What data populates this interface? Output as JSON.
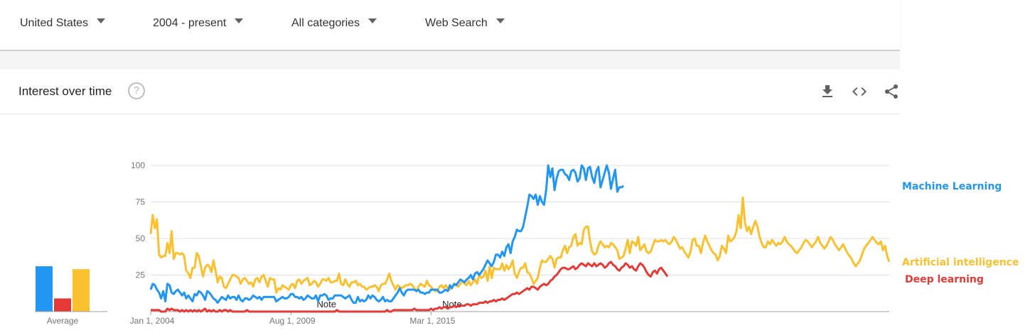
{
  "filters": {
    "region": "United States",
    "time_range": "2004 - present",
    "category": "All categories",
    "search_type": "Web Search"
  },
  "card": {
    "title": "Interest over time",
    "help_icon": "help-circle-icon",
    "actions": [
      "download-icon",
      "embed-code-icon",
      "share-icon"
    ]
  },
  "colors": {
    "machine_learning": "#2196f3",
    "artificial_intelligence": "#fbc02d",
    "deep_learning": "#e53935",
    "grid": "#e0e0e0",
    "axis": "#9e9e9e"
  },
  "chart_data": {
    "type": "line",
    "x_start": "Jan 1, 2004",
    "x_step": "1 month",
    "x_ticks": [
      "Jan 1, 2004",
      "Aug 1, 2009",
      "Mar 1, 2015"
    ],
    "ylim": [
      0,
      100
    ],
    "y_ticks": [
      25,
      50,
      75,
      100
    ],
    "grid": true,
    "legend": "right",
    "notes": [
      {
        "x": "Jan 1, 2011",
        "text": "Note"
      },
      {
        "x": "Jan 1, 2016",
        "text": "Note"
      }
    ],
    "series": [
      {
        "name": "Machine Learning",
        "values": [
          15,
          19,
          18,
          15,
          13,
          9,
          14,
          7,
          19,
          18,
          13,
          12,
          14,
          15,
          13,
          11,
          13,
          9,
          11,
          9,
          7,
          12,
          11,
          14,
          13,
          11,
          8,
          14,
          13,
          11,
          9,
          8,
          6,
          8,
          10,
          9,
          8,
          11,
          9,
          10,
          10,
          8,
          11,
          8,
          7,
          9,
          9,
          8,
          9,
          11,
          10,
          9,
          10,
          8,
          10,
          10,
          10,
          10,
          10,
          10,
          7,
          8,
          9,
          10,
          9,
          9,
          10,
          12,
          12,
          10,
          10,
          9,
          10,
          8,
          9,
          11,
          10,
          9,
          9,
          11,
          7,
          11,
          11,
          12,
          11,
          8,
          9,
          9,
          11,
          11,
          11,
          11,
          10,
          9,
          10,
          11,
          8,
          6,
          6,
          10,
          7,
          8,
          7,
          8,
          11,
          9,
          11,
          10,
          8,
          7,
          8,
          10,
          7,
          8,
          7,
          7,
          9,
          11,
          13,
          16,
          13,
          11,
          14,
          15,
          15,
          15,
          15,
          14,
          15,
          13,
          13,
          12,
          13,
          13,
          15,
          15,
          15,
          15,
          13,
          13,
          14,
          15,
          14,
          18,
          16,
          19,
          18,
          20,
          22,
          21,
          20,
          22,
          23,
          25,
          22,
          26,
          27,
          25,
          27,
          29,
          32,
          35,
          33,
          31,
          34,
          39,
          39,
          37,
          41,
          38,
          44,
          46,
          40,
          48,
          51,
          56,
          55,
          55,
          58,
          65,
          72,
          80,
          79,
          77,
          80,
          73,
          79,
          75,
          73,
          83,
          100,
          92,
          98,
          83,
          91,
          96,
          97,
          97,
          94,
          93,
          90,
          96,
          97,
          95,
          89,
          91,
          100,
          98,
          90,
          98,
          99,
          92,
          88,
          96,
          99,
          85,
          90,
          95,
          100,
          95,
          84,
          91,
          97,
          82,
          85,
          85,
          86
        ]
      },
      {
        "name": "Artificial intelligence",
        "values": [
          53,
          66,
          57,
          63,
          39,
          37,
          38,
          38,
          47,
          40,
          55,
          36,
          40,
          40,
          39,
          40,
          38,
          28,
          26,
          23,
          30,
          30,
          40,
          38,
          31,
          24,
          30,
          32,
          31,
          27,
          35,
          28,
          20,
          24,
          23,
          17,
          16,
          19,
          22,
          25,
          25,
          24,
          23,
          19,
          22,
          23,
          21,
          19,
          20,
          17,
          22,
          23,
          20,
          24,
          25,
          21,
          17,
          23,
          22,
          22,
          13,
          16,
          15,
          18,
          17,
          16,
          15,
          18,
          19,
          16,
          21,
          22,
          19,
          21,
          22,
          23,
          18,
          19,
          21,
          20,
          17,
          19,
          22,
          22,
          21,
          23,
          20,
          20,
          21,
          21,
          26,
          19,
          18,
          22,
          19,
          17,
          20,
          20,
          21,
          18,
          19,
          17,
          17,
          15,
          16,
          17,
          17,
          18,
          17,
          14,
          18,
          19,
          19,
          22,
          26,
          21,
          18,
          15,
          18,
          17,
          16,
          17,
          18,
          18,
          19,
          18,
          16,
          14,
          17,
          19,
          18,
          17,
          21,
          18,
          17,
          15,
          14,
          14,
          17,
          18,
          16,
          18,
          16,
          15,
          17,
          18,
          19,
          17,
          19,
          21,
          19,
          18,
          21,
          18,
          20,
          22,
          19,
          25,
          23,
          24,
          28,
          21,
          31,
          23,
          30,
          29,
          29,
          29,
          33,
          28,
          32,
          29,
          31,
          35,
          26,
          23,
          27,
          30,
          30,
          33,
          27,
          26,
          23,
          19,
          21,
          23,
          30,
          35,
          34,
          34,
          36,
          38,
          36,
          30,
          36,
          37,
          37,
          42,
          45,
          40,
          44,
          45,
          51,
          53,
          45,
          47,
          46,
          56,
          58,
          58,
          48,
          41,
          39,
          40,
          45,
          48,
          46,
          44,
          45,
          44,
          47,
          46,
          44,
          42,
          36,
          37,
          38,
          43,
          49,
          40,
          48,
          47,
          45,
          51,
          42,
          44,
          46,
          41,
          40,
          41,
          45,
          49,
          48,
          48,
          49,
          48,
          49,
          47,
          46,
          48,
          51,
          49,
          46,
          43,
          44,
          41,
          39,
          37,
          41,
          49,
          50,
          45,
          45,
          40,
          47,
          52,
          48,
          45,
          42,
          40,
          39,
          35,
          38,
          45,
          43,
          40,
          52,
          48,
          49,
          51,
          55,
          66,
          57,
          78,
          61,
          55,
          58,
          53,
          58,
          62,
          58,
          51,
          47,
          44,
          44,
          48,
          46,
          49,
          47,
          45,
          47,
          46,
          48,
          51,
          48,
          46,
          45,
          43,
          41,
          40,
          42,
          44,
          47,
          49,
          48,
          46,
          44,
          46,
          48,
          51,
          47,
          45,
          43,
          45,
          48,
          51,
          49,
          46,
          44,
          42,
          44,
          46,
          43,
          40,
          38,
          36,
          33,
          31,
          33,
          35,
          39,
          43,
          45,
          47,
          49,
          51,
          49,
          47,
          46,
          48,
          42,
          45,
          38,
          34
        ]
      },
      {
        "name": "Deep learning",
        "values": [
          1,
          1,
          1,
          1,
          1,
          0,
          0,
          0,
          2,
          1,
          2,
          1,
          1,
          1,
          0,
          1,
          0,
          1,
          0,
          1,
          0,
          1,
          0,
          1,
          0,
          1,
          2,
          0,
          1,
          0,
          1,
          0,
          0,
          1,
          0,
          1,
          1,
          0,
          1,
          0,
          0,
          0,
          0,
          0,
          0,
          0,
          1,
          0,
          0,
          0,
          0,
          0,
          0,
          0,
          0,
          0,
          0,
          0,
          0,
          0,
          0,
          0,
          0,
          0,
          0,
          0,
          0,
          0,
          0,
          0,
          0,
          0,
          0,
          0,
          0,
          0,
          0,
          0,
          0,
          0,
          0,
          0,
          0,
          0,
          0,
          0,
          0,
          0,
          0,
          1,
          0,
          0,
          0,
          0,
          0,
          0,
          0,
          0,
          0,
          0,
          0,
          0,
          0,
          0,
          0,
          0,
          0,
          0,
          0,
          0,
          0,
          0,
          0,
          1,
          0,
          0,
          1,
          1,
          1,
          1,
          1,
          1,
          1,
          1,
          1,
          1,
          2,
          1,
          1,
          1,
          1,
          1,
          1,
          1,
          2,
          1,
          2,
          2,
          3,
          2,
          3,
          3,
          2,
          3,
          3,
          4,
          3,
          4,
          4,
          4,
          4,
          5,
          5,
          4,
          5,
          5,
          5,
          6,
          6,
          6,
          7,
          6,
          7,
          7,
          8,
          7,
          8,
          8,
          9,
          8,
          9,
          10,
          11,
          12,
          12,
          13,
          12,
          13,
          14,
          15,
          16,
          15,
          17,
          17,
          16,
          15,
          17,
          18,
          19,
          18,
          19,
          21,
          22,
          24,
          25,
          27,
          29,
          30,
          30,
          29,
          29,
          30,
          31,
          29,
          30,
          32,
          33,
          32,
          31,
          33,
          32,
          31,
          33,
          31,
          32,
          33,
          32,
          30,
          31,
          33,
          34,
          32,
          31,
          29,
          28,
          30,
          31,
          33,
          32,
          30,
          31,
          29,
          28,
          31,
          33,
          32,
          30,
          27,
          25,
          24,
          27,
          28,
          26,
          29,
          30,
          28,
          26,
          24
        ]
      }
    ],
    "average": [
      {
        "name": "Machine Learning",
        "value": 31
      },
      {
        "name": "Deep learning",
        "value": 9
      },
      {
        "name": "Artificial intelligence",
        "value": 29
      }
    ],
    "average_label": "Average"
  }
}
